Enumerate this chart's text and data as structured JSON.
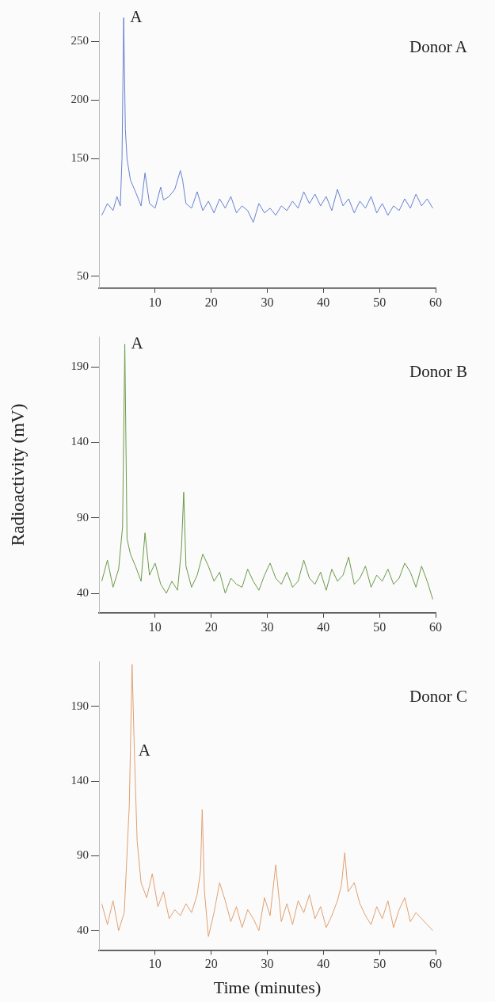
{
  "chart_data": [
    {
      "type": "line",
      "annotations": [
        "Donor A",
        {
          "text": "A",
          "x": 4.4,
          "y": 270
        }
      ],
      "series": [
        {
          "color": "#6680d0",
          "x": [
            0.5,
            1.5,
            2.5,
            3.2,
            3.8,
            4.1,
            4.4,
            4.7,
            5.0,
            5.6,
            6.5,
            7.5,
            8.2,
            9,
            10,
            11,
            11.5,
            12.5,
            13.5,
            14.5,
            14.9,
            15.5,
            16.5,
            17.5,
            18.5,
            19.5,
            20.5,
            21.5,
            22.5,
            23.5,
            24.5,
            25.5,
            26.5,
            27.5,
            28.5,
            29.5,
            30.5,
            31.5,
            32.5,
            33.5,
            34.5,
            35.5,
            36.5,
            37.5,
            38.5,
            39.5,
            40.5,
            41.5,
            42.5,
            43.5,
            44.5,
            45.5,
            46.5,
            47.5,
            48.5,
            49.5,
            50.5,
            51.5,
            52.5,
            53.5,
            54.5,
            55.5,
            56.5,
            57.5,
            58.5,
            59.5
          ],
          "values": [
            102,
            112,
            106,
            118,
            110,
            150,
            270,
            175,
            150,
            132,
            122,
            110,
            138,
            112,
            108,
            126,
            115,
            118,
            124,
            140,
            132,
            112,
            108,
            122,
            106,
            114,
            104,
            116,
            108,
            118,
            104,
            110,
            106,
            96,
            112,
            104,
            108,
            102,
            110,
            106,
            114,
            108,
            122,
            112,
            120,
            110,
            118,
            106,
            124,
            110,
            116,
            104,
            114,
            108,
            118,
            104,
            112,
            102,
            110,
            106,
            116,
            108,
            120,
            110,
            116,
            108
          ]
        }
      ],
      "xlim": [
        0,
        60
      ],
      "xticks": [
        10,
        20,
        30,
        40,
        50,
        60
      ],
      "ylim": [
        40,
        275
      ],
      "yticks": [
        50,
        150,
        200,
        250
      ]
    },
    {
      "type": "line",
      "ylabel": "Radioactivity (mV)",
      "annotations": [
        "Donor B",
        {
          "text": "A",
          "x": 4.6,
          "y": 205
        }
      ],
      "series": [
        {
          "color": "#6a9a48",
          "x": [
            0.5,
            1.5,
            2.5,
            3.5,
            4.2,
            4.6,
            5.0,
            5.6,
            6.5,
            7.5,
            8.2,
            9,
            10,
            11,
            12,
            13,
            14,
            14.7,
            15.1,
            15.5,
            16.5,
            17.5,
            18.5,
            19.5,
            20.5,
            21.5,
            22.5,
            23.5,
            24.5,
            25.5,
            26.5,
            27.5,
            28.5,
            29.5,
            30.5,
            31.5,
            32.5,
            33.5,
            34.5,
            35.5,
            36.5,
            37.5,
            38.5,
            39.5,
            40.5,
            41.5,
            42.5,
            43.5,
            44.5,
            45.5,
            46.5,
            47.5,
            48.5,
            49.5,
            50.5,
            51.5,
            52.5,
            53.5,
            54.5,
            55.5,
            56.5,
            57.5,
            58.5,
            59.5
          ],
          "values": [
            48,
            62,
            44,
            56,
            84,
            205,
            76,
            66,
            58,
            48,
            80,
            52,
            60,
            46,
            40,
            48,
            42,
            70,
            107,
            58,
            44,
            52,
            66,
            58,
            48,
            54,
            40,
            50,
            46,
            44,
            56,
            48,
            42,
            52,
            60,
            50,
            46,
            54,
            44,
            48,
            62,
            50,
            46,
            54,
            42,
            56,
            48,
            52,
            64,
            46,
            50,
            58,
            44,
            52,
            48,
            56,
            46,
            50,
            60,
            54,
            44,
            58,
            48,
            36
          ]
        }
      ],
      "xlim": [
        0,
        60
      ],
      "xticks": [
        10,
        20,
        30,
        40,
        50,
        60
      ],
      "ylim": [
        27,
        210
      ],
      "yticks": [
        40,
        90,
        140,
        190
      ]
    },
    {
      "type": "line",
      "xlabel": "Time (minutes)",
      "annotations": [
        "Donor C",
        {
          "text": "A",
          "x": 5.9,
          "y": 160
        }
      ],
      "series": [
        {
          "color": "#e0a070",
          "x": [
            0.5,
            1.5,
            2.5,
            3.5,
            4.5,
            5.4,
            5.9,
            6.3,
            6.8,
            7.5,
            8.5,
            9.5,
            10.5,
            11.5,
            12.5,
            13.5,
            14.5,
            15.5,
            16.5,
            17.5,
            18.1,
            18.4,
            18.8,
            19.5,
            20.5,
            21.5,
            22.5,
            23.5,
            24.5,
            25.5,
            26.5,
            27.5,
            28.5,
            29.5,
            30.5,
            31.5,
            32.5,
            33.5,
            34.5,
            35.5,
            36.5,
            37.5,
            38.5,
            39.5,
            40.5,
            41.5,
            42.5,
            43.2,
            43.8,
            44.4,
            45.5,
            46.5,
            47.5,
            48.5,
            49.5,
            50.5,
            51.5,
            52.5,
            53.5,
            54.5,
            55.5,
            56.5,
            57.5,
            58.5,
            59.5
          ],
          "values": [
            58,
            44,
            60,
            40,
            52,
            124,
            218,
            160,
            100,
            72,
            62,
            78,
            56,
            66,
            48,
            54,
            50,
            58,
            52,
            64,
            80,
            121,
            66,
            36,
            52,
            72,
            60,
            46,
            56,
            42,
            54,
            48,
            40,
            62,
            50,
            84,
            46,
            58,
            44,
            60,
            52,
            64,
            48,
            56,
            42,
            50,
            60,
            70,
            92,
            66,
            72,
            58,
            50,
            44,
            56,
            48,
            60,
            42,
            54,
            62,
            46,
            52,
            48,
            44,
            40
          ]
        }
      ],
      "xlim": [
        0,
        60
      ],
      "xticks": [
        10,
        20,
        30,
        40,
        50,
        60
      ],
      "ylim": [
        27,
        220
      ],
      "yticks": [
        40,
        90,
        140,
        190
      ]
    }
  ]
}
